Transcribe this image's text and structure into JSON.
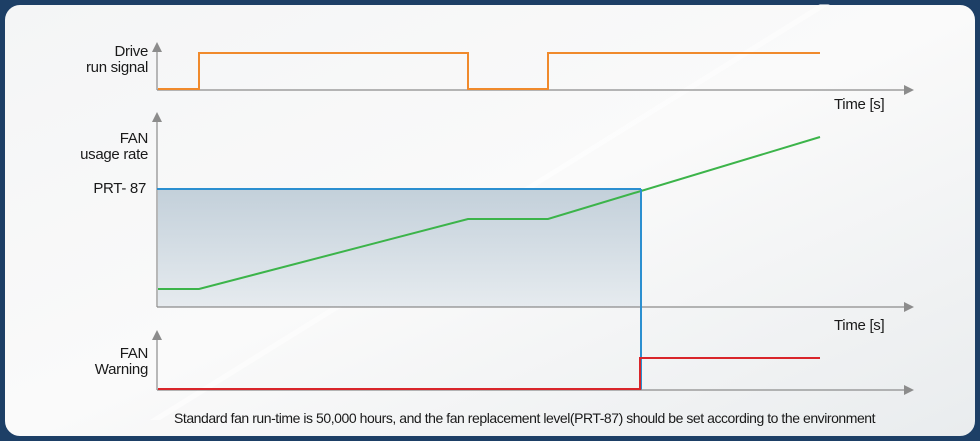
{
  "signals": {
    "drive_run_signal": {
      "label_line1": "Drive",
      "label_line2": "run signal"
    },
    "fan_usage_rate": {
      "label_line1": "FAN",
      "label_line2": "usage rate"
    },
    "prt87_level": {
      "label": "PRT- 87"
    },
    "fan_warning": {
      "label_line1": "FAN",
      "label_line2": "Warning"
    }
  },
  "axes": {
    "time_label_top": "Time [s]",
    "time_label_middle": "Time [s]"
  },
  "caption": "Standard fan run-time is 50,000 hours, and the fan replacement level(PRT-87) should be set according to the environment",
  "colors": {
    "frame_border": "#1d3f66",
    "axis": "#8c8c8c",
    "run_signal": "#f08a2c",
    "usage_rate": "#3cb44a",
    "prt87_line": "#2b8fd0",
    "warning": "#d9252a",
    "threshold_fill": "#c6d3dc"
  }
}
